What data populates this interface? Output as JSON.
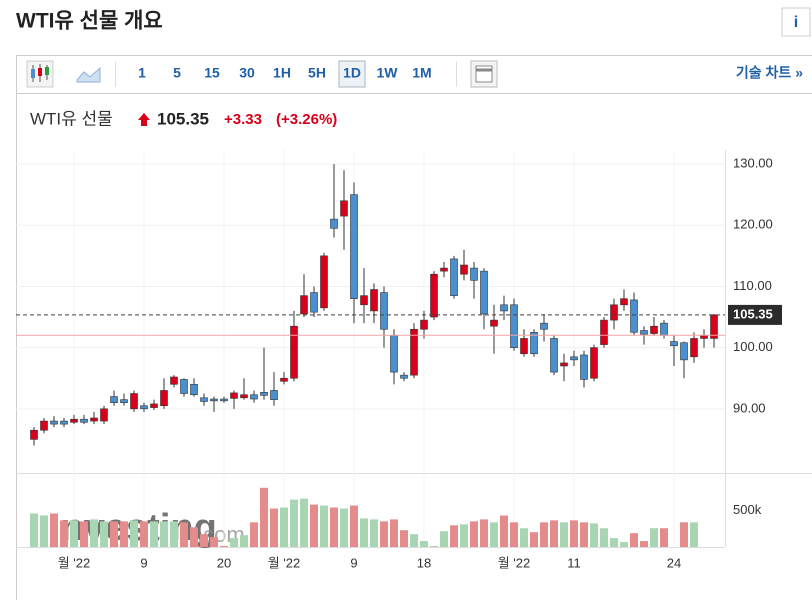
{
  "header": {
    "title": "WTI유 선물 개요",
    "info": "i"
  },
  "toolbar": {
    "intervals": [
      "1",
      "5",
      "15",
      "30",
      "1H",
      "5H",
      "1D",
      "1W",
      "1M"
    ],
    "selected": "1D",
    "tech_chart": "기술 차트 »"
  },
  "quote": {
    "name": "WTI유 선물",
    "price": "105.35",
    "change": "+3.33",
    "change_pct": "(+3.26%)"
  },
  "chart_data": {
    "type": "candlestick",
    "categories": [
      null,
      null,
      null,
      null,
      "월 '22",
      null,
      null,
      null,
      null,
      null,
      null,
      "9",
      null,
      null,
      null,
      null,
      null,
      null,
      null,
      "20",
      null,
      null,
      null,
      null,
      null,
      "월 '22",
      null,
      null,
      null,
      null,
      null,
      null,
      "9",
      null,
      null,
      null,
      null,
      null,
      null,
      "18",
      null,
      null,
      null,
      null,
      null,
      null,
      null,
      null,
      "월 '22",
      null,
      null,
      null,
      null,
      null,
      "11",
      null,
      null,
      null,
      null,
      null,
      null,
      null,
      null,
      null,
      "24",
      null,
      null,
      null,
      null
    ],
    "open": [
      85,
      86.5,
      88,
      88,
      87.8,
      88.3,
      88,
      88,
      92,
      91.5,
      90,
      90.5,
      90.2,
      90.5,
      94,
      94.8,
      94,
      91.8,
      91.6,
      91.6,
      91.7,
      91.8,
      92.3,
      92.7,
      93,
      94.5,
      95,
      105.5,
      109,
      106.5,
      121,
      121.5,
      125,
      107,
      106,
      109,
      102,
      95.5,
      95.5,
      103,
      105,
      112.5,
      114.5,
      112,
      113,
      112.5,
      103.5,
      107,
      107,
      99,
      102.5,
      104,
      101.5,
      97,
      98.5,
      98.8,
      95,
      100.5,
      104.5,
      107,
      107.8,
      102.8,
      102.3,
      104,
      101,
      100.8,
      98.5,
      101.5,
      101.5
    ],
    "high": [
      87,
      88.5,
      88.8,
      88.5,
      89,
      89,
      89.5,
      90.5,
      93,
      92.5,
      93,
      91,
      91.5,
      95,
      95.5,
      95,
      95,
      92.5,
      92,
      92,
      93,
      95,
      93,
      100,
      96,
      96,
      106,
      112,
      110,
      115.5,
      130,
      129,
      127,
      113,
      110.5,
      110,
      103,
      96,
      104,
      106,
      112.5,
      114,
      115,
      116,
      114,
      113,
      107,
      108.5,
      108,
      103,
      103,
      105.5,
      102,
      99,
      99.5,
      99.5,
      100.5,
      105,
      108,
      109.5,
      109,
      103.5,
      105,
      104.5,
      102,
      101,
      102.5,
      103,
      105.5
    ],
    "low": [
      84,
      86,
      87,
      87,
      87.5,
      87.5,
      87.5,
      87.5,
      90.5,
      90.5,
      89.5,
      89.5,
      89.8,
      90,
      93.5,
      92,
      92,
      90.5,
      89.5,
      91,
      90,
      91.5,
      91,
      91.5,
      90.5,
      94,
      94.5,
      105,
      105,
      106,
      118,
      116,
      104,
      104,
      104,
      100,
      94,
      94.5,
      95,
      101.5,
      104.5,
      111.5,
      108,
      111,
      108,
      103,
      99,
      104.5,
      99.5,
      98.5,
      98.5,
      101,
      95.5,
      94.5,
      97,
      93.5,
      94.5,
      100,
      103,
      106,
      102,
      100.5,
      102,
      101.5,
      97,
      95,
      97.5,
      100,
      100
    ],
    "close": [
      86.5,
      88,
      87.5,
      87.5,
      88.3,
      87.8,
      88.5,
      90,
      91,
      91,
      92.5,
      90,
      90.8,
      93,
      95.2,
      92.5,
      92.3,
      91.2,
      91.3,
      91.3,
      92.6,
      92.3,
      91.6,
      92.2,
      91.5,
      95,
      103.5,
      108.5,
      105.8,
      115,
      119.5,
      124,
      108,
      108.5,
      109.5,
      103,
      96,
      95,
      103,
      104.5,
      112,
      113,
      108.5,
      113.5,
      111,
      105.5,
      104.5,
      106,
      100,
      101.5,
      99,
      103,
      96,
      97.5,
      98,
      94.8,
      100,
      104.5,
      107,
      108,
      102.5,
      102.2,
      103.5,
      102,
      100.3,
      98,
      101.5,
      102,
      105.35
    ],
    "volume": [
      459000,
      432000,
      459000,
      365000,
      365000,
      351000,
      378000,
      351000,
      351000,
      351000,
      365000,
      351000,
      351000,
      351000,
      351000,
      338000,
      270000,
      176000,
      135000,
      14000,
      122000,
      162000,
      338000,
      811000,
      527000,
      541000,
      649000,
      662000,
      581000,
      568000,
      541000,
      527000,
      568000,
      392000,
      378000,
      351000,
      378000,
      230000,
      176000,
      81000,
      14000,
      216000,
      297000,
      311000,
      351000,
      378000,
      338000,
      432000,
      338000,
      257000,
      203000,
      338000,
      365000,
      338000,
      365000,
      338000,
      324000,
      257000,
      122000,
      68000,
      189000,
      81000,
      257000,
      257000,
      null,
      338000,
      338000,
      null,
      null
    ],
    "up_color": "#d9001b",
    "down_color": "#4a8fd0",
    "volume_up_color": "#a8d5b2",
    "volume_down_color": "#e48b8b",
    "ylim": [
      80,
      132.3
    ],
    "yticks": [
      {
        "value": 90,
        "label": "90.00"
      },
      {
        "value": 100,
        "label": "100.00"
      },
      {
        "value": 110,
        "label": "110.00"
      },
      {
        "value": 120,
        "label": "120.00"
      },
      {
        "value": 130,
        "label": "130.00"
      }
    ],
    "volume_ylim": [
      0,
      1000000
    ],
    "volume_yticks": [
      {
        "value": 500000,
        "label": "500k"
      }
    ],
    "last_price": {
      "value": 105.35,
      "label": "105.35"
    },
    "prev_close": 102.02,
    "grid": true,
    "watermark": [
      "Investing",
      ".com"
    ]
  }
}
